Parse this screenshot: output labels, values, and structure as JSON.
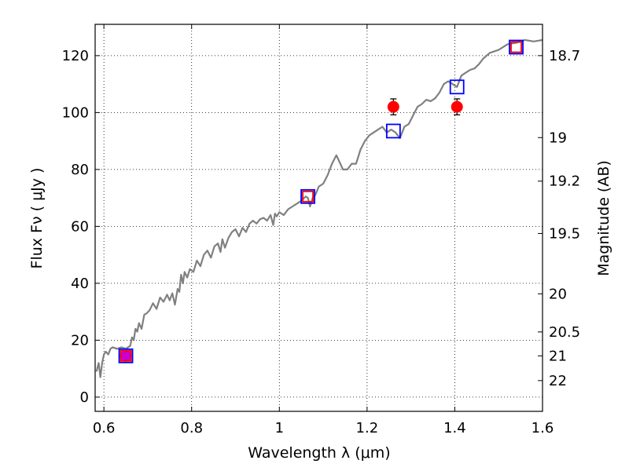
{
  "chart_data": {
    "type": "scatter",
    "xlabel": "Wavelength  λ (μm)",
    "ylabel": "Flux  Fν  ( μJy )",
    "ylabel_right": "Magnitude (AB)",
    "xlim": [
      0.58,
      1.6
    ],
    "ylim": [
      -5,
      131
    ],
    "grid": true,
    "xticks": [
      0.6,
      0.8,
      1.0,
      1.2,
      1.4,
      1.6
    ],
    "xtick_labels": [
      "0.6",
      "0.8",
      "1",
      "1.2",
      "1.4",
      "1.6"
    ],
    "yticks": [
      0,
      20,
      40,
      60,
      80,
      100,
      120
    ],
    "ytick_labels": [
      "0",
      "20",
      "40",
      "60",
      "80",
      "100",
      "120"
    ],
    "right_ticks": [
      {
        "label": "18.7",
        "flux": 120.0
      },
      {
        "label": "19",
        "flux": 91.2
      },
      {
        "label": "19.2",
        "flux": 75.9
      },
      {
        "label": "19.5",
        "flux": 57.5
      },
      {
        "label": "20",
        "flux": 36.3
      },
      {
        "label": "20.5",
        "flux": 22.9
      },
      {
        "label": "21",
        "flux": 14.5
      },
      {
        "label": "22",
        "flux": 5.8
      }
    ],
    "series": [
      {
        "name": "model spectrum",
        "kind": "line",
        "color": "#808080",
        "x": [
          0.583,
          0.588,
          0.592,
          0.596,
          0.6,
          0.604,
          0.61,
          0.615,
          0.62,
          0.63,
          0.64,
          0.65,
          0.66,
          0.664,
          0.668,
          0.672,
          0.676,
          0.68,
          0.686,
          0.692,
          0.698,
          0.704,
          0.712,
          0.72,
          0.728,
          0.736,
          0.744,
          0.75,
          0.756,
          0.762,
          0.768,
          0.772,
          0.776,
          0.78,
          0.784,
          0.79,
          0.796,
          0.804,
          0.812,
          0.82,
          0.828,
          0.836,
          0.844,
          0.852,
          0.86,
          0.866,
          0.87,
          0.876,
          0.884,
          0.892,
          0.9,
          0.908,
          0.916,
          0.924,
          0.932,
          0.94,
          0.948,
          0.956,
          0.964,
          0.972,
          0.98,
          0.986,
          0.99,
          0.994,
          1.0,
          1.01,
          1.02,
          1.03,
          1.04,
          1.05,
          1.06,
          1.065,
          1.07,
          1.076,
          1.082,
          1.09,
          1.1,
          1.11,
          1.12,
          1.13,
          1.136,
          1.145,
          1.155,
          1.165,
          1.175,
          1.185,
          1.195,
          1.205,
          1.215,
          1.225,
          1.235,
          1.245,
          1.255,
          1.265,
          1.275,
          1.285,
          1.295,
          1.305,
          1.315,
          1.325,
          1.335,
          1.345,
          1.355,
          1.365,
          1.375,
          1.385,
          1.395,
          1.405,
          1.415,
          1.425,
          1.435,
          1.445,
          1.455,
          1.465,
          1.48,
          1.5,
          1.52,
          1.54,
          1.56,
          1.58,
          1.6
        ],
        "y": [
          9.0,
          12.0,
          7.0,
          12.0,
          15.0,
          16.0,
          15.0,
          17.0,
          17.5,
          17.0,
          17.5,
          17.0,
          18.0,
          21.0,
          20.0,
          24.0,
          23.0,
          26.0,
          24.0,
          29.0,
          29.5,
          30.5,
          33.0,
          31.0,
          35.0,
          33.5,
          36.0,
          34.0,
          36.5,
          32.5,
          38.0,
          37.0,
          43.0,
          40.0,
          44.0,
          42.0,
          45.0,
          44.0,
          48.0,
          46.0,
          50.0,
          51.5,
          49.0,
          53.0,
          54.0,
          51.0,
          55.5,
          52.5,
          56.0,
          58.0,
          59.0,
          56.5,
          59.5,
          58.0,
          61.0,
          62.0,
          61.0,
          62.5,
          63.0,
          62.0,
          64.0,
          60.5,
          64.5,
          63.5,
          65.0,
          64.0,
          66.0,
          67.0,
          68.0,
          69.0,
          70.5,
          70.0,
          67.0,
          70.0,
          71.0,
          74.0,
          75.0,
          78.0,
          82.0,
          85.0,
          83.0,
          80.0,
          80.0,
          82.0,
          82.0,
          87.0,
          90.0,
          92.0,
          93.0,
          94.0,
          95.0,
          93.0,
          94.0,
          93.0,
          91.0,
          95.0,
          96.0,
          99.0,
          102.0,
          103.0,
          104.5,
          104.0,
          105.0,
          107.0,
          110.0,
          111.0,
          110.0,
          109.0,
          113.0,
          114.0,
          115.0,
          115.5,
          117.0,
          119.0,
          121.0,
          122.0,
          124.0,
          124.5,
          125.5,
          125.0,
          125.5
        ]
      },
      {
        "name": "blue open squares",
        "kind": "marker-square",
        "color": "#0000ff",
        "x": [
          0.65,
          1.065,
          1.26,
          1.405,
          1.54
        ],
        "y": [
          14.5,
          70.5,
          93.5,
          109.0,
          123.0
        ]
      },
      {
        "name": "red open squares",
        "kind": "marker-square",
        "color": "#ff0000",
        "x": [
          0.65,
          1.065,
          1.54
        ],
        "y": [
          14.5,
          70.5,
          123.0
        ]
      },
      {
        "name": "red filled circles with error bars",
        "kind": "marker-circle",
        "color": "#ff0000",
        "x": [
          1.26,
          1.405
        ],
        "y": [
          102.0,
          102.0
        ],
        "err": [
          2.8,
          2.8
        ]
      },
      {
        "name": "magenta filled circle with error bar",
        "kind": "marker-circle",
        "color": "#cc00cc",
        "x": [
          0.65
        ],
        "y": [
          14.5
        ],
        "err": [
          1.5
        ]
      }
    ]
  }
}
